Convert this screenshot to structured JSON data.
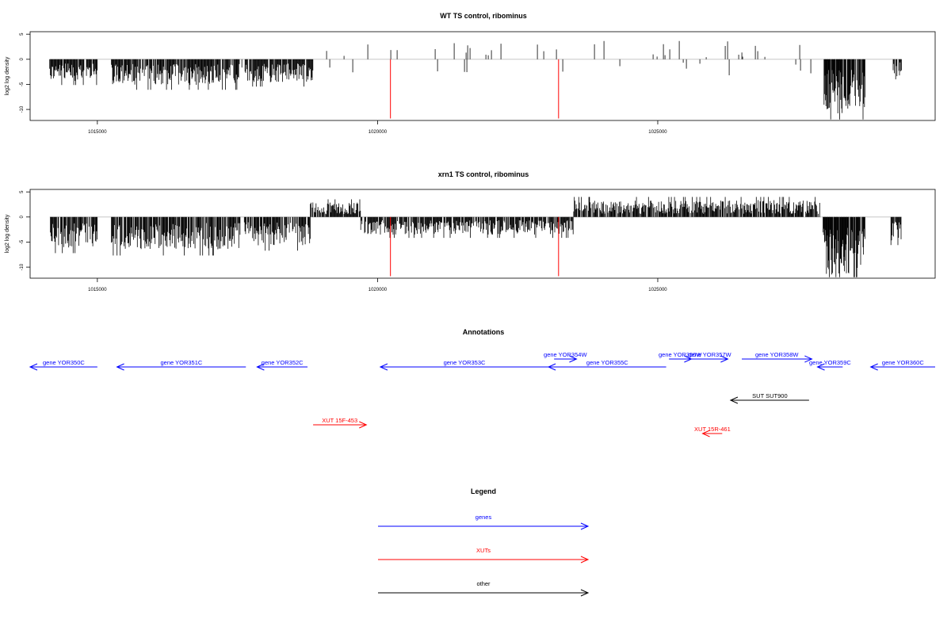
{
  "chart_data": [
    {
      "type": "bar",
      "title": "WT TS control, ribominus",
      "xlabel": "",
      "ylabel": "log2 log density",
      "xlim": [
        1013800,
        1029950
      ],
      "ylim": [
        -12.2,
        5.5
      ],
      "x_ticks": [
        1015000,
        1020000,
        1025000
      ],
      "x_tick_labels": [
        "1015000",
        "1020000",
        "1025000"
      ],
      "y_ticks": [
        5,
        0,
        -5,
        -10
      ],
      "y_tick_labels": [
        "5",
        "0",
        "-5",
        "-10"
      ],
      "series": [
        {
          "color": "#000000",
          "segments": [
            {
              "from": 1014150,
              "to": 1015000,
              "level": -3.2,
              "sign": -1
            },
            {
              "from": 1015250,
              "to": 1017500,
              "level": -3.8,
              "sign": -1
            },
            {
              "from": 1017500,
              "to": 1018850,
              "level": -3.4,
              "sign": -1
            },
            {
              "from": 1018850,
              "to": 1027900,
              "level": 1.2,
              "sign": 1,
              "sparse": true
            },
            {
              "from": 1027950,
              "to": 1028700,
              "level": -8.0,
              "sign": -1,
              "dense": true
            },
            {
              "from": 1029200,
              "to": 1029350,
              "level": -2.5,
              "sign": -1
            }
          ]
        },
        {
          "color": "#ff0000",
          "bars": [
            {
              "x": 1020230,
              "y": -11.8
            },
            {
              "x": 1023230,
              "y": -11.8
            }
          ]
        }
      ]
    },
    {
      "type": "bar",
      "title": "xrn1 TS control, ribominus",
      "xlabel": "",
      "ylabel": "log2 log density",
      "xlim": [
        1013800,
        1029950
      ],
      "ylim": [
        -12.2,
        5.5
      ],
      "x_ticks": [
        1015000,
        1020000,
        1025000
      ],
      "x_tick_labels": [
        "1015000",
        "1020000",
        "1025000"
      ],
      "y_ticks": [
        5,
        0,
        -5,
        -10
      ],
      "y_tick_labels": [
        "5",
        "0",
        "-5",
        "-10"
      ],
      "series": [
        {
          "color": "#000000",
          "segments": [
            {
              "from": 1014150,
              "to": 1015000,
              "level": -4.5,
              "sign": -1
            },
            {
              "from": 1015250,
              "to": 1017550,
              "level": -4.8,
              "sign": -1
            },
            {
              "from": 1017600,
              "to": 1018800,
              "level": -4.2,
              "sign": -1
            },
            {
              "from": 1018800,
              "to": 1019700,
              "level": 2.2,
              "sign": 1
            },
            {
              "from": 1019700,
              "to": 1023500,
              "level": -2.6,
              "sign": -1
            },
            {
              "from": 1023500,
              "to": 1027900,
              "level": 2.5,
              "sign": 1
            },
            {
              "from": 1027950,
              "to": 1028700,
              "level": -8.5,
              "sign": -1,
              "dense": true
            },
            {
              "from": 1029150,
              "to": 1029350,
              "level": -3.5,
              "sign": -1
            }
          ]
        },
        {
          "color": "#ff0000",
          "bars": [
            {
              "x": 1020230,
              "y": -11.8
            },
            {
              "x": 1023230,
              "y": -11.8
            }
          ]
        }
      ]
    }
  ],
  "annotations": {
    "title": "Annotations",
    "xlim": [
      1013800,
      1029950
    ],
    "features": [
      {
        "label": "gene YOR350C",
        "start": 1013800,
        "end": 1015000,
        "strand": "-",
        "category": "genes",
        "row": 0
      },
      {
        "label": "gene YOR351C",
        "start": 1015350,
        "end": 1017650,
        "strand": "-",
        "category": "genes",
        "row": 0
      },
      {
        "label": "gene YOR352C",
        "start": 1017850,
        "end": 1018750,
        "strand": "-",
        "category": "genes",
        "row": 0
      },
      {
        "label": "gene YOR353C",
        "start": 1020050,
        "end": 1023050,
        "strand": "-",
        "category": "genes",
        "row": 0
      },
      {
        "label": "gene YOR354W",
        "start": 1023150,
        "end": 1023550,
        "strand": "+",
        "category": "genes",
        "row": -1
      },
      {
        "label": "gene YOR355C",
        "start": 1023050,
        "end": 1025150,
        "strand": "-",
        "category": "genes",
        "row": 0
      },
      {
        "label": "gene YOR356W",
        "start": 1025200,
        "end": 1025600,
        "strand": "+",
        "category": "genes",
        "row": -1
      },
      {
        "label": "gene YOR357W",
        "start": 1025600,
        "end": 1026250,
        "strand": "+",
        "category": "genes",
        "row": -1
      },
      {
        "label": "gene YOR358W",
        "start": 1026500,
        "end": 1027750,
        "strand": "+",
        "category": "genes",
        "row": -1
      },
      {
        "label": "gene YOR359C",
        "start": 1027850,
        "end": 1028300,
        "strand": "-",
        "category": "genes",
        "row": 0
      },
      {
        "label": "gene YOR360C",
        "start": 1028800,
        "end": 1029950,
        "strand": "-",
        "category": "genes",
        "row": 0
      },
      {
        "label": "SUT SUT900",
        "start": 1026300,
        "end": 1027700,
        "strand": "-",
        "category": "other",
        "row": 1
      },
      {
        "label": "XUT 15F-453",
        "start": 1018850,
        "end": 1019800,
        "strand": "+",
        "category": "XUTs",
        "row": 2
      },
      {
        "label": "XUT 15R-461",
        "start": 1025800,
        "end": 1026150,
        "strand": "-",
        "category": "XUTs",
        "row": 3
      }
    ]
  },
  "legend": {
    "title": "Legend",
    "items": [
      {
        "label": "genes",
        "color": "#0000ff"
      },
      {
        "label": "XUTs",
        "color": "#ff0000"
      },
      {
        "label": "other",
        "color": "#000000"
      }
    ]
  },
  "colors": {
    "genes": "#0000ff",
    "XUTs": "#ff0000",
    "other": "#000000",
    "axis": "#000000",
    "zero_line": "#bebebe"
  }
}
